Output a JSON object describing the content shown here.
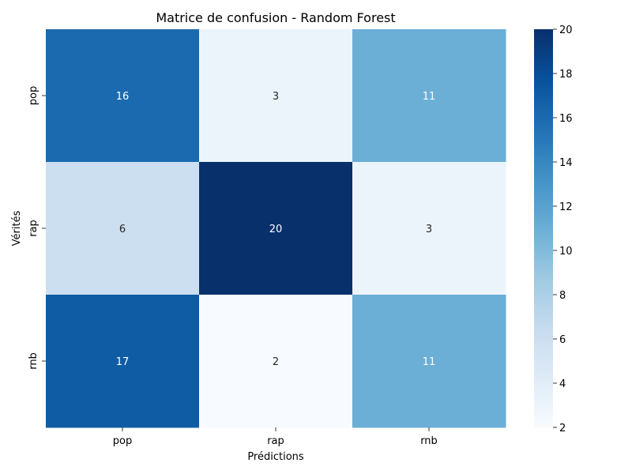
{
  "chart_data": {
    "type": "heatmap",
    "title": "Matrice de confusion - Random Forest",
    "xlabel": "Prédictions",
    "ylabel": "Vérités",
    "x_categories": [
      "pop",
      "rap",
      "rnb"
    ],
    "y_categories": [
      "pop",
      "rap",
      "rnb"
    ],
    "values": [
      [
        16,
        3,
        11
      ],
      [
        6,
        20,
        3
      ],
      [
        17,
        2,
        11
      ]
    ],
    "colorbar": {
      "min": 2,
      "max": 20,
      "ticks": [
        "2",
        "4",
        "6",
        "8",
        "10",
        "12",
        "14",
        "16",
        "18",
        "20"
      ]
    },
    "colormap": "Blues",
    "annotations": true
  }
}
